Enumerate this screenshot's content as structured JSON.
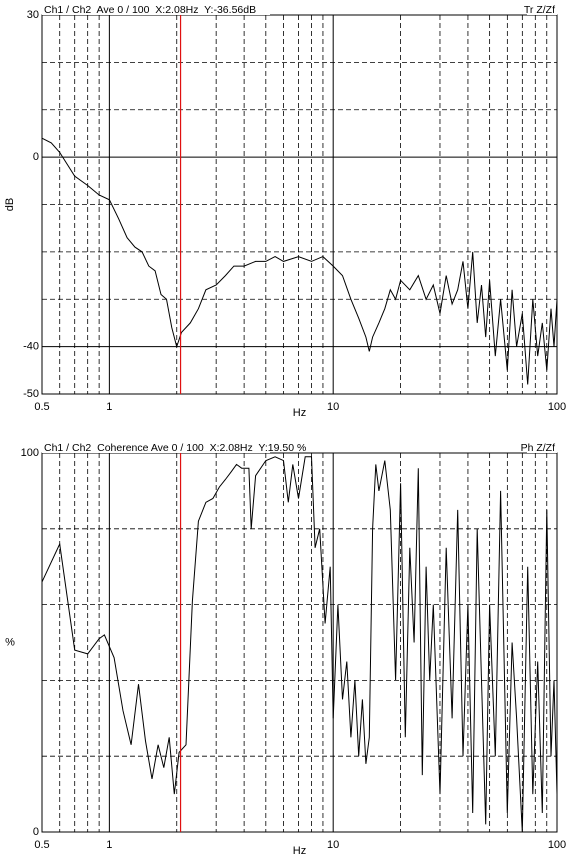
{
  "chart_data": [
    {
      "type": "line",
      "title": "Ch1 / Ch2  Ave 0 / 100  X:2.08Hz  Y:-36.56dB",
      "annotation": "Tr Z/Zf",
      "x_label": "Hz",
      "y_label": "dB",
      "x_scale": "log",
      "color": "#000000",
      "cursor_color": "#e01010",
      "cursor_x": 2.08,
      "xlim": [
        0.5,
        100
      ],
      "xticks": [
        0.5,
        1,
        10,
        100
      ],
      "minor_xticks": [
        0.6,
        0.7,
        0.8,
        0.9,
        2,
        3,
        4,
        5,
        6,
        7,
        8,
        9,
        20,
        30,
        40,
        50,
        60,
        70,
        80,
        90
      ],
      "ylim": [
        -50,
        30
      ],
      "yticks": [
        -50,
        -40,
        0,
        30
      ],
      "minor_yticks": [
        -30,
        -20,
        -10,
        10,
        20
      ],
      "x": [
        0.5,
        0.55,
        0.6,
        0.7,
        0.8,
        0.9,
        1,
        1.1,
        1.2,
        1.3,
        1.4,
        1.5,
        1.6,
        1.7,
        1.8,
        1.9,
        2.0,
        2.1,
        2.3,
        2.5,
        2.7,
        3.0,
        3.3,
        3.6,
        4,
        4.5,
        5,
        5.5,
        6,
        7,
        8,
        9,
        10,
        11,
        12,
        13,
        14,
        14.5,
        15,
        16,
        17,
        18,
        19,
        20,
        22,
        24,
        26,
        28,
        30,
        32,
        34,
        36,
        38,
        40,
        42,
        44,
        46,
        48,
        50,
        53,
        56,
        60,
        63,
        66,
        70,
        74,
        78,
        82,
        86,
        90,
        94,
        97,
        100
      ],
      "values": [
        4,
        3,
        1,
        -4,
        -6,
        -8,
        -9,
        -13,
        -17,
        -19,
        -20,
        -23,
        -24,
        -29,
        -30,
        -36,
        -40,
        -37,
        -35,
        -32,
        -28,
        -27,
        -25,
        -23,
        -23,
        -22,
        -22,
        -21,
        -22,
        -21,
        -22,
        -21,
        -23,
        -25,
        -30,
        -34,
        -38,
        -41,
        -38,
        -35,
        -32,
        -28,
        -30,
        -26,
        -28,
        -25,
        -30,
        -27,
        -33,
        -25,
        -31,
        -28,
        -22,
        -32,
        -20,
        -35,
        -27,
        -38,
        -26,
        -42,
        -30,
        -45,
        -28,
        -40,
        -33,
        -48,
        -30,
        -42,
        -35,
        -45,
        -32,
        -40,
        -30
      ]
    },
    {
      "type": "line",
      "title": "Ch1 / Ch2  Coherence Ave 0 / 100  X:2.08Hz  Y:19.50 %",
      "annotation": "Ph Z/Zf",
      "x_label": "Hz",
      "y_label": "%",
      "x_scale": "log",
      "color": "#000000",
      "cursor_color": "#e01010",
      "cursor_x": 2.08,
      "xlim": [
        0.5,
        100
      ],
      "xticks": [
        0.5,
        1,
        10,
        100
      ],
      "minor_xticks": [
        0.6,
        0.7,
        0.8,
        0.9,
        2,
        3,
        4,
        5,
        6,
        7,
        8,
        9,
        20,
        30,
        40,
        50,
        60,
        70,
        80,
        90
      ],
      "ylim": [
        0,
        100
      ],
      "yticks": [
        0,
        100
      ],
      "minor_yticks": [
        20,
        40,
        60,
        80
      ],
      "x": [
        0.5,
        0.6,
        0.7,
        0.8,
        0.9,
        0.95,
        1.05,
        1.15,
        1.25,
        1.35,
        1.45,
        1.55,
        1.65,
        1.75,
        1.85,
        1.95,
        2.05,
        2.2,
        2.35,
        2.5,
        2.7,
        2.9,
        3.1,
        3.3,
        3.5,
        3.7,
        3.9,
        4.2,
        4.3,
        4.5,
        5,
        5.5,
        6,
        6.3,
        6.6,
        7,
        7.5,
        8,
        8.3,
        8.7,
        9.2,
        9.7,
        10,
        10.5,
        11,
        11.5,
        12,
        12.5,
        13,
        13.5,
        14,
        14.5,
        15,
        15.5,
        16,
        17,
        18,
        19,
        20,
        21,
        22,
        23,
        24,
        25,
        26,
        27,
        28,
        30,
        32,
        34,
        36,
        38,
        40,
        42,
        44,
        46,
        48,
        50,
        53,
        56,
        60,
        63,
        66,
        70,
        74,
        78,
        82,
        86,
        90,
        94,
        97,
        100
      ],
      "values": [
        66,
        76,
        48,
        47,
        51,
        52,
        46,
        32,
        23,
        39,
        24,
        14,
        23,
        17,
        25,
        10,
        21,
        23,
        61,
        82,
        87,
        88,
        91,
        93,
        95,
        97,
        96,
        96,
        80,
        94,
        98,
        99,
        98,
        87,
        97,
        88,
        99,
        99,
        75,
        80,
        55,
        70,
        30,
        60,
        35,
        45,
        25,
        40,
        20,
        35,
        18,
        25,
        80,
        97,
        90,
        98,
        85,
        40,
        92,
        25,
        75,
        50,
        96,
        15,
        70,
        40,
        60,
        10,
        75,
        30,
        85,
        20,
        60,
        5,
        80,
        40,
        2,
        60,
        20,
        90,
        5,
        50,
        30,
        0,
        70,
        10,
        45,
        5,
        85,
        20,
        40,
        10
      ]
    }
  ]
}
